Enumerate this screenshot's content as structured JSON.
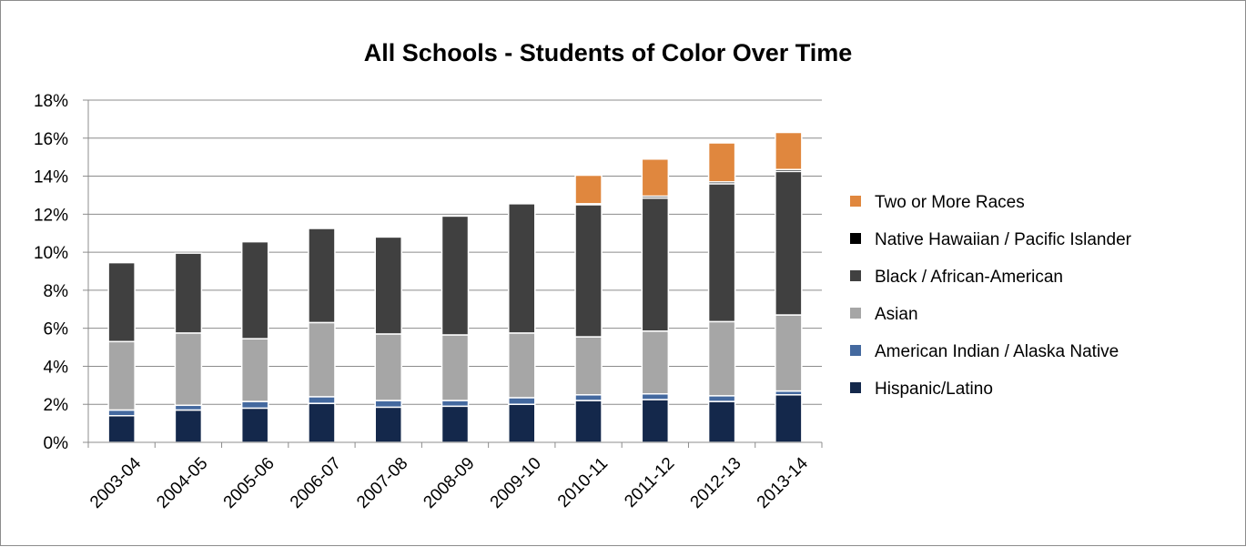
{
  "chart_data": {
    "type": "bar",
    "stacked": true,
    "title": "All Schools - Students of Color Over Time",
    "xlabel": "",
    "ylabel": "",
    "ylim": [
      0,
      18
    ],
    "yticks": [
      "0%",
      "2%",
      "4%",
      "6%",
      "8%",
      "10%",
      "12%",
      "14%",
      "16%",
      "18%"
    ],
    "grid": true,
    "legend_position": "right",
    "categories": [
      "2003-04",
      "2004-05",
      "2005-06",
      "2006-07",
      "2007-08",
      "2008-09",
      "2009-10",
      "2010-11",
      "2011-12",
      "2012-13",
      "2013-14"
    ],
    "series": [
      {
        "name": "Hispanic/Latino",
        "color": "#14284b",
        "values": [
          1.4,
          1.7,
          1.8,
          2.05,
          1.85,
          1.9,
          2.0,
          2.2,
          2.25,
          2.15,
          2.5
        ]
      },
      {
        "name": "American Indian / Alaska Native",
        "color": "#44699f",
        "values": [
          0.3,
          0.25,
          0.35,
          0.35,
          0.35,
          0.3,
          0.35,
          0.3,
          0.3,
          0.3,
          0.2
        ]
      },
      {
        "name": "Asian",
        "color": "#a6a6a6",
        "values": [
          3.6,
          3.8,
          3.3,
          3.9,
          3.5,
          3.45,
          3.4,
          3.05,
          3.3,
          3.9,
          4.0
        ]
      },
      {
        "name": "Black / African-American",
        "color": "#404040",
        "values": [
          4.15,
          4.2,
          5.1,
          4.95,
          5.1,
          6.25,
          6.8,
          6.95,
          7.0,
          7.25,
          7.55
        ]
      },
      {
        "name": "Native Hawaiian / Pacific Islander",
        "color": "#000000",
        "values": [
          0,
          0,
          0,
          0,
          0,
          0,
          0,
          0.05,
          0.1,
          0.1,
          0.1
        ]
      },
      {
        "name": "Two or More Races",
        "color": "#e0873e",
        "values": [
          0,
          0,
          0,
          0,
          0,
          0,
          0,
          1.5,
          1.95,
          2.05,
          1.95
        ]
      }
    ],
    "legend_order": [
      "Two or More Races",
      "Native Hawaiian / Pacific Islander",
      "Black / African-American",
      "Asian",
      "American Indian / Alaska Native",
      "Hispanic/Latino"
    ]
  }
}
